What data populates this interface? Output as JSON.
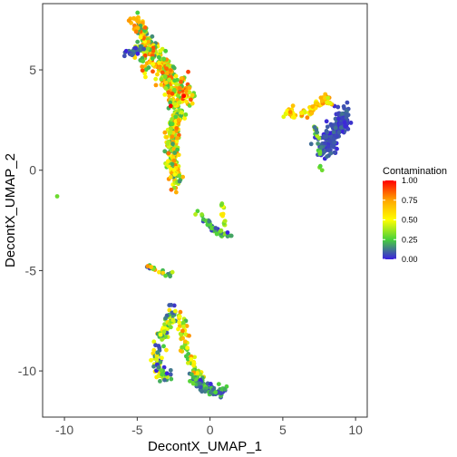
{
  "chart_data": {
    "type": "scatter",
    "title": "",
    "xlabel": "DecontX_UMAP_1",
    "ylabel": "DecontX_UMAP_2",
    "xlim": [
      -11.5,
      10.8
    ],
    "ylim": [
      -12.3,
      8.3
    ],
    "xticks": [
      -10,
      -5,
      0,
      5,
      10
    ],
    "yticks": [
      -10,
      -5,
      0,
      5
    ],
    "grid": false,
    "legend": {
      "title": "Contamination",
      "placement": "right",
      "ticks": [
        "0.00",
        "0.25",
        "0.50",
        "0.75",
        "1.00"
      ],
      "tick_values": [
        0,
        0.25,
        0.5,
        0.75,
        1.0
      ],
      "color_stops": [
        {
          "value": 0.0,
          "color": "#3b1fe0"
        },
        {
          "value": 0.25,
          "color": "#47d13b"
        },
        {
          "value": 0.5,
          "color": "#ffff00"
        },
        {
          "value": 0.75,
          "color": "#ffa500"
        },
        {
          "value": 1.0,
          "color": "#ff0000"
        }
      ]
    },
    "clusters": [
      {
        "name_hint": "main-upper",
        "path": [
          [
            -5.2,
            7.6
          ],
          [
            -4.8,
            7.0
          ],
          [
            -4.2,
            6.3
          ],
          [
            -3.6,
            5.8
          ],
          [
            -3.0,
            5.1
          ],
          [
            -2.8,
            4.3
          ],
          [
            -2.4,
            3.6
          ],
          [
            -2.2,
            2.8
          ],
          [
            -2.6,
            2.0
          ],
          [
            -2.6,
            1.0
          ],
          [
            -2.5,
            0.0
          ],
          [
            -2.3,
            -0.8
          ]
        ],
        "spread": 0.35,
        "n": 420,
        "contamination_range": [
          0.15,
          0.85
        ]
      },
      {
        "name_hint": "main-wide",
        "path": [
          [
            -5.0,
            6.0
          ],
          [
            -4.0,
            5.4
          ],
          [
            -3.2,
            4.8
          ],
          [
            -2.2,
            4.3
          ],
          [
            -1.4,
            3.6
          ]
        ],
        "spread": 0.55,
        "n": 180,
        "contamination_range": [
          0.2,
          0.9
        ]
      },
      {
        "name_hint": "top-left-arm",
        "path": [
          [
            -5.8,
            5.8
          ],
          [
            -5.2,
            5.9
          ],
          [
            -4.6,
            6.0
          ]
        ],
        "spread": 0.15,
        "n": 30,
        "contamination_range": [
          0.0,
          0.15
        ]
      },
      {
        "name_hint": "right-cluster-core",
        "path": [
          [
            7.8,
            1.0
          ],
          [
            8.3,
            1.6
          ],
          [
            8.9,
            2.2
          ],
          [
            9.3,
            2.8
          ]
        ],
        "spread": 0.45,
        "n": 200,
        "contamination_range": [
          0.0,
          0.12
        ]
      },
      {
        "name_hint": "right-arm",
        "path": [
          [
            5.2,
            2.8
          ],
          [
            6.0,
            2.9
          ],
          [
            6.8,
            2.9
          ],
          [
            7.3,
            3.3
          ],
          [
            7.8,
            3.6
          ],
          [
            8.2,
            3.4
          ]
        ],
        "spread": 0.18,
        "n": 80,
        "contamination_range": [
          0.4,
          0.8
        ]
      },
      {
        "name_hint": "right-tail",
        "path": [
          [
            7.2,
            2.2
          ],
          [
            7.5,
            1.2
          ],
          [
            7.7,
            0.5
          ],
          [
            7.6,
            0.1
          ]
        ],
        "spread": 0.12,
        "n": 18,
        "contamination_range": [
          0.1,
          0.4
        ]
      },
      {
        "name_hint": "mid-small",
        "path": [
          [
            -0.8,
            -2.1
          ],
          [
            0.0,
            -2.8
          ],
          [
            0.6,
            -3.1
          ],
          [
            1.2,
            -3.2
          ],
          [
            1.5,
            -3.2
          ]
        ],
        "spread": 0.15,
        "n": 45,
        "contamination_range": [
          0.0,
          0.35
        ]
      },
      {
        "name_hint": "mid-small-arm",
        "path": [
          [
            0.8,
            -1.7
          ],
          [
            0.9,
            -2.2
          ],
          [
            1.0,
            -2.8
          ]
        ],
        "spread": 0.1,
        "n": 14,
        "contamination_range": [
          0.3,
          0.6
        ]
      },
      {
        "name_hint": "small-pair",
        "path": [
          [
            -4.3,
            -4.8
          ],
          [
            -3.7,
            -5.0
          ],
          [
            -3.0,
            -5.2
          ],
          [
            -2.6,
            -5.2
          ]
        ],
        "spread": 0.1,
        "n": 22,
        "contamination_range": [
          0.0,
          0.8
        ]
      },
      {
        "name_hint": "lower-left",
        "path": [
          [
            -2.3,
            -6.7
          ],
          [
            -2.8,
            -7.5
          ],
          [
            -3.3,
            -8.3
          ],
          [
            -3.7,
            -9.3
          ],
          [
            -3.5,
            -10.1
          ],
          [
            -2.8,
            -10.4
          ]
        ],
        "spread": 0.3,
        "n": 130,
        "contamination_range": [
          0.0,
          0.6
        ]
      },
      {
        "name_hint": "lower-mid",
        "path": [
          [
            -2.0,
            -7.2
          ],
          [
            -1.8,
            -8.2
          ],
          [
            -1.6,
            -9.2
          ],
          [
            -1.0,
            -10.0
          ],
          [
            -0.4,
            -10.4
          ]
        ],
        "spread": 0.25,
        "n": 70,
        "contamination_range": [
          0.2,
          0.8
        ]
      },
      {
        "name_hint": "lower-right",
        "path": [
          [
            -1.4,
            -10.3
          ],
          [
            -0.6,
            -10.7
          ],
          [
            0.2,
            -11.0
          ],
          [
            0.8,
            -11.1
          ],
          [
            1.0,
            -10.8
          ]
        ],
        "spread": 0.25,
        "n": 90,
        "contamination_range": [
          0.0,
          0.3
        ]
      }
    ],
    "outliers": [
      {
        "x": -10.5,
        "y": -1.3,
        "contamination": 0.3
      },
      {
        "x": 7.7,
        "y": 0.0,
        "contamination": 0.3
      },
      {
        "x": -1.0,
        "y": -2.2,
        "contamination": 0.4
      },
      {
        "x": -2.0,
        "y": 4.4,
        "contamination": 0.85
      },
      {
        "x": -1.8,
        "y": 3.7,
        "contamination": 1.0
      },
      {
        "x": -2.7,
        "y": 3.2,
        "contamination": 1.0
      },
      {
        "x": -1.5,
        "y": 4.9,
        "contamination": 0.9
      }
    ]
  }
}
